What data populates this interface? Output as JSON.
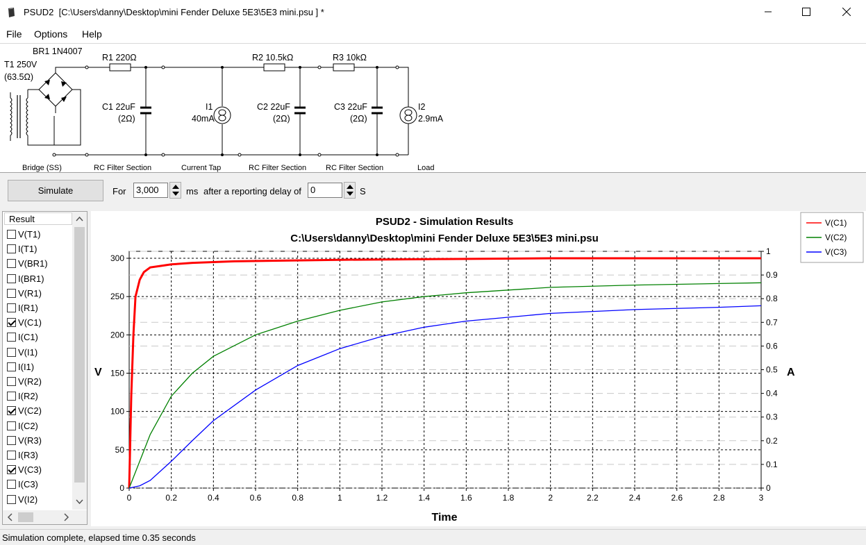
{
  "window": {
    "app_name": "PSUD2",
    "file_path": "[C:\\Users\\danny\\Desktop\\mini Fender Deluxe 5E3\\5E3 mini.psu ] *",
    "minimize_icon": "minimize-icon",
    "maximize_icon": "maximize-icon",
    "close_icon": "close-icon"
  },
  "menu": {
    "items": [
      "File",
      "Options",
      "Help"
    ]
  },
  "schematic": {
    "t1_label": "T1 250V",
    "t1_res": "(63.5Ω)",
    "br1_label": "BR1 1N4007",
    "r1_label": "R1 220Ω",
    "c1_label": "C1 22uF",
    "c1_res": "(2Ω)",
    "i1_label": "I1",
    "i1_value": "40mA",
    "r2_label": "R2 10.5kΩ",
    "c2_label": "C2 22uF",
    "c2_res": "(2Ω)",
    "r3_label": "R3 10kΩ",
    "c3_label": "C3 22uF",
    "c3_res": "(2Ω)",
    "i2_label": "I2",
    "i2_value": "2.9mA",
    "sections": [
      "Bridge (SS)",
      "RC Filter Section",
      "Current Tap",
      "RC Filter Section",
      "RC Filter Section",
      "Load"
    ]
  },
  "toolbar": {
    "simulate_label": "Simulate",
    "for_label": "For",
    "duration_value": "3,000",
    "ms_label": "ms",
    "after_label": "after a reporting delay of",
    "delay_value": "0",
    "s_label": "S"
  },
  "results": {
    "header": "Result",
    "items": [
      {
        "label": "V(T1)",
        "checked": false
      },
      {
        "label": "I(T1)",
        "checked": false
      },
      {
        "label": "V(BR1)",
        "checked": false
      },
      {
        "label": "I(BR1)",
        "checked": false
      },
      {
        "label": "V(R1)",
        "checked": false
      },
      {
        "label": "I(R1)",
        "checked": false
      },
      {
        "label": "V(C1)",
        "checked": true
      },
      {
        "label": "I(C1)",
        "checked": false
      },
      {
        "label": "V(I1)",
        "checked": false
      },
      {
        "label": "I(I1)",
        "checked": false
      },
      {
        "label": "V(R2)",
        "checked": false
      },
      {
        "label": "I(R2)",
        "checked": false
      },
      {
        "label": "V(C2)",
        "checked": true
      },
      {
        "label": "I(C2)",
        "checked": false
      },
      {
        "label": "V(R3)",
        "checked": false
      },
      {
        "label": "I(R3)",
        "checked": false
      },
      {
        "label": "V(C3)",
        "checked": true
      },
      {
        "label": "I(C3)",
        "checked": false
      },
      {
        "label": "V(I2)",
        "checked": false
      }
    ]
  },
  "status": {
    "text": "Simulation complete, elapsed time 0.35 seconds"
  },
  "chart_data": {
    "type": "line",
    "title": "PSUD2 - Simulation Results",
    "subtitle": "C:\\Users\\danny\\Desktop\\mini Fender Deluxe 5E3\\5E3 mini.psu",
    "xlabel": "Time",
    "ylabel": "V",
    "y2label": "A",
    "xlim": [
      0,
      3
    ],
    "ylim": [
      0,
      300
    ],
    "y2lim": [
      0,
      1
    ],
    "xticks": [
      "0",
      "0.2",
      "0.4",
      "0.6",
      "0.8",
      "1",
      "1.2",
      "1.4",
      "1.6",
      "1.8",
      "2",
      "2.2",
      "2.4",
      "2.6",
      "2.8",
      "3"
    ],
    "yticks": [
      "0",
      "50",
      "100",
      "150",
      "200",
      "250",
      "300"
    ],
    "y2ticks": [
      "0",
      "0.1",
      "0.2",
      "0.3",
      "0.4",
      "0.5",
      "0.6",
      "0.7",
      "0.8",
      "0.9",
      "1"
    ],
    "grid": true,
    "legend_position": "top-right",
    "series": [
      {
        "name": "V(C1)",
        "color": "#ff0000",
        "x": [
          0,
          0.01,
          0.02,
          0.03,
          0.05,
          0.07,
          0.1,
          0.15,
          0.2,
          0.3,
          0.5,
          1.0,
          1.5,
          2.0,
          2.5,
          3.0
        ],
        "y": [
          0,
          120,
          200,
          250,
          272,
          282,
          288,
          290,
          292,
          294,
          296,
          298,
          299,
          300,
          300,
          300
        ]
      },
      {
        "name": "V(C2)",
        "color": "#008000",
        "x": [
          0,
          0.05,
          0.1,
          0.2,
          0.3,
          0.4,
          0.6,
          0.8,
          1.0,
          1.2,
          1.4,
          1.6,
          2.0,
          2.4,
          2.8,
          3.0
        ],
        "y": [
          0,
          35,
          70,
          120,
          150,
          172,
          200,
          218,
          232,
          243,
          250,
          255,
          262,
          265,
          267,
          268
        ]
      },
      {
        "name": "V(C3)",
        "color": "#0000ff",
        "x": [
          0,
          0.05,
          0.1,
          0.2,
          0.3,
          0.4,
          0.6,
          0.8,
          1.0,
          1.2,
          1.4,
          1.6,
          2.0,
          2.4,
          2.8,
          3.0
        ],
        "y": [
          0,
          3,
          10,
          35,
          62,
          88,
          128,
          160,
          182,
          198,
          210,
          218,
          228,
          233,
          236,
          238
        ]
      }
    ]
  }
}
